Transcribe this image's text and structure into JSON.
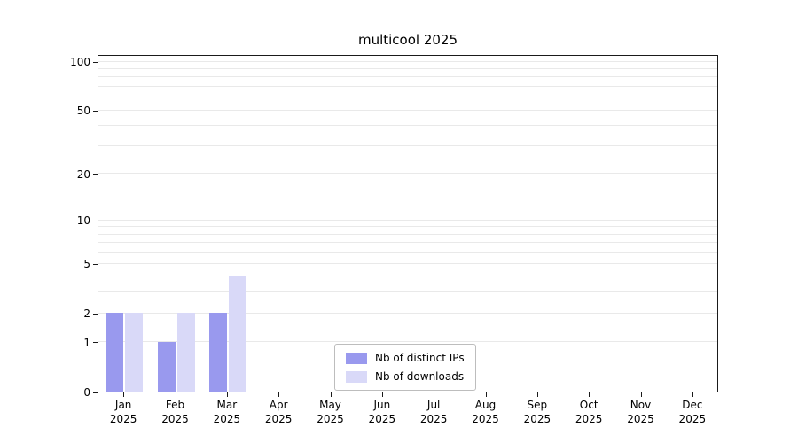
{
  "title": "multicool 2025",
  "chart_data": {
    "type": "bar",
    "title": "multicool 2025",
    "categories": [
      "Jan",
      "Feb",
      "Mar",
      "Apr",
      "May",
      "Jun",
      "Jul",
      "Aug",
      "Sep",
      "Oct",
      "Nov",
      "Dec"
    ],
    "category_year": "2025",
    "series": [
      {
        "name": "Nb of distinct IPs",
        "color": "#9999ee",
        "values": [
          2,
          1,
          2,
          0,
          0,
          0,
          0,
          0,
          0,
          0,
          0,
          0
        ]
      },
      {
        "name": "Nb of downloads",
        "color": "#d9d9f8",
        "values": [
          2,
          2,
          4,
          0,
          0,
          0,
          0,
          0,
          0,
          0,
          0,
          0
        ]
      }
    ],
    "yticks": [
      0,
      1,
      2,
      5,
      10,
      20,
      50,
      100
    ],
    "ylim": [
      0,
      100
    ],
    "yscale": "log1p",
    "grid": "horizontal-minor",
    "legend_position": "bottom-center"
  }
}
